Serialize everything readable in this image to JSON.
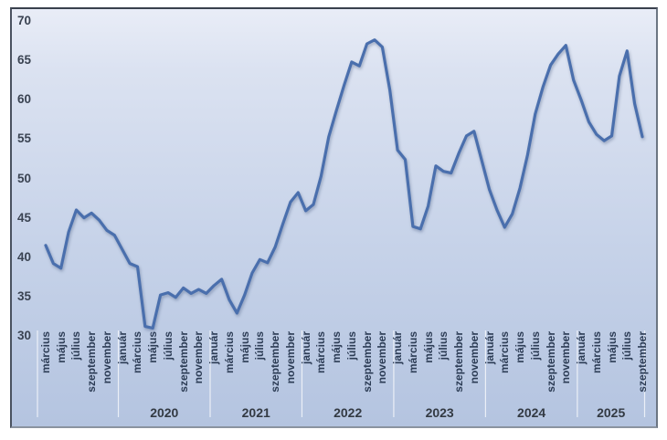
{
  "chart_data": {
    "type": "line",
    "title": "",
    "ylim": [
      30,
      70
    ],
    "y_ticks": [
      70,
      65,
      60,
      55,
      50,
      45,
      40,
      35,
      30
    ],
    "x_tick_month_names": {
      "01": "január",
      "03": "március",
      "05": "május",
      "07": "július",
      "09": "szeptember",
      "11": "november"
    },
    "year_labels": [
      "2020",
      "2021",
      "2022",
      "2023",
      "2024",
      "2025"
    ],
    "legend": "none",
    "grid": "off",
    "months": [
      "2019-03",
      "2019-04",
      "2019-05",
      "2019-06",
      "2019-07",
      "2019-08",
      "2019-09",
      "2019-10",
      "2019-11",
      "2019-12",
      "2020-01",
      "2020-02",
      "2020-03",
      "2020-04",
      "2020-05",
      "2020-06",
      "2020-07",
      "2020-08",
      "2020-09",
      "2020-10",
      "2020-11",
      "2020-12",
      "2021-01",
      "2021-02",
      "2021-03",
      "2021-04",
      "2021-05",
      "2021-06",
      "2021-07",
      "2021-08",
      "2021-09",
      "2021-10",
      "2021-11",
      "2021-12",
      "2022-01",
      "2022-02",
      "2022-03",
      "2022-04",
      "2022-05",
      "2022-06",
      "2022-07",
      "2022-08",
      "2022-09",
      "2022-10",
      "2022-11",
      "2022-12",
      "2023-01",
      "2023-02",
      "2023-03",
      "2023-04",
      "2023-05",
      "2023-06",
      "2023-07",
      "2023-08",
      "2023-09",
      "2023-10",
      "2023-11",
      "2023-12",
      "2024-01",
      "2024-02",
      "2024-03",
      "2024-04",
      "2024-05",
      "2024-06",
      "2024-07",
      "2024-08",
      "2024-09",
      "2024-10",
      "2024-11",
      "2024-12",
      "2025-01",
      "2025-02",
      "2025-03",
      "2025-04",
      "2025-05",
      "2025-06",
      "2025-07",
      "2025-08",
      "2025-09"
    ],
    "values": [
      41.5,
      39.2,
      38.6,
      43.2,
      46.0,
      45.0,
      45.6,
      44.7,
      43.4,
      42.8,
      41.0,
      39.2,
      38.8,
      31.2,
      31.0,
      35.2,
      35.5,
      34.9,
      36.1,
      35.4,
      35.9,
      35.4,
      36.4,
      37.2,
      34.6,
      32.9,
      35.2,
      38.0,
      39.7,
      39.3,
      41.3,
      44.2,
      47.0,
      48.2,
      45.9,
      46.7,
      50.3,
      55.3,
      58.6,
      61.8,
      64.8,
      64.3,
      67.1,
      67.6,
      66.7,
      61.2,
      53.6,
      52.4,
      43.9,
      43.6,
      46.5,
      51.6,
      50.9,
      50.7,
      53.2,
      55.4,
      56.0,
      52.3,
      48.6,
      46.0,
      43.8,
      45.5,
      48.8,
      53.0,
      58.2,
      61.6,
      64.4,
      65.8,
      66.9,
      62.5,
      60.0,
      57.2,
      55.6,
      54.8,
      55.4,
      63.0,
      66.2,
      59.5,
      55.3
    ],
    "line_color": "#4a6fad",
    "separator_color": "rgba(255,255,255,0.72)",
    "background_top": "#e9edf7",
    "background_bottom": "#b4c4e0"
  }
}
